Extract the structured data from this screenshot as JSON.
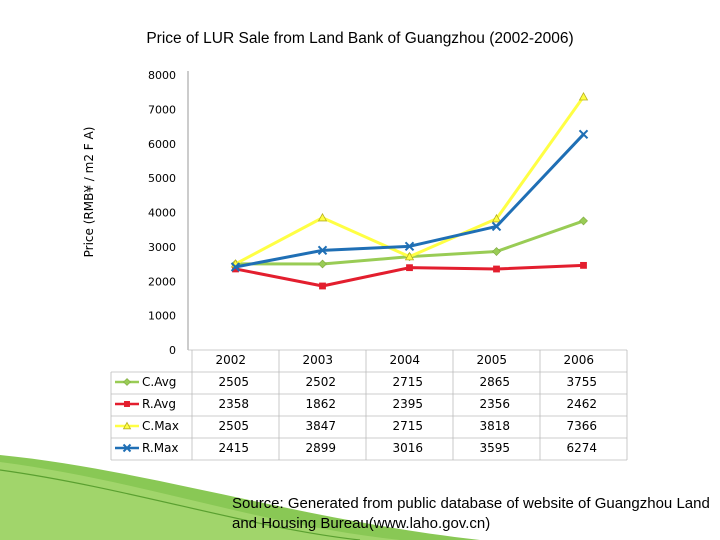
{
  "chart_data": {
    "type": "line",
    "title": "Price of LUR Sale from Land Bank of Guangzhou (2002-2006)",
    "ylabel": "Price (RMB¥ / m2 F A)",
    "xlabel": "",
    "ylim": [
      0,
      8000
    ],
    "yticks": [
      0,
      1000,
      2000,
      3000,
      4000,
      5000,
      6000,
      7000,
      8000
    ],
    "categories": [
      "2002",
      "2003",
      "2004",
      "2005",
      "2006"
    ],
    "grid": false,
    "legend_position": "data-table-left",
    "series": [
      {
        "name": "C.Avg",
        "values": [
          2505,
          2502,
          2715,
          2865,
          3755
        ],
        "color": "#99cc55",
        "marker": "diamond"
      },
      {
        "name": "R.Avg",
        "values": [
          2358,
          1862,
          2395,
          2356,
          2462
        ],
        "color": "#e31e2e",
        "marker": "square"
      },
      {
        "name": "C.Max",
        "values": [
          2505,
          3847,
          2715,
          3818,
          7366
        ],
        "color": "#ffff44",
        "marker": "triangle"
      },
      {
        "name": "R.Max",
        "values": [
          2415,
          2899,
          3016,
          3595,
          6274
        ],
        "color": "#1f6fb5",
        "marker": "x"
      }
    ]
  },
  "footer": {
    "source": "Source: Generated from  public database of website of Guangzhou Land and Housing Bureau(www.laho.gov.cn)"
  },
  "colors": {
    "deco_green": "#7cc242"
  }
}
